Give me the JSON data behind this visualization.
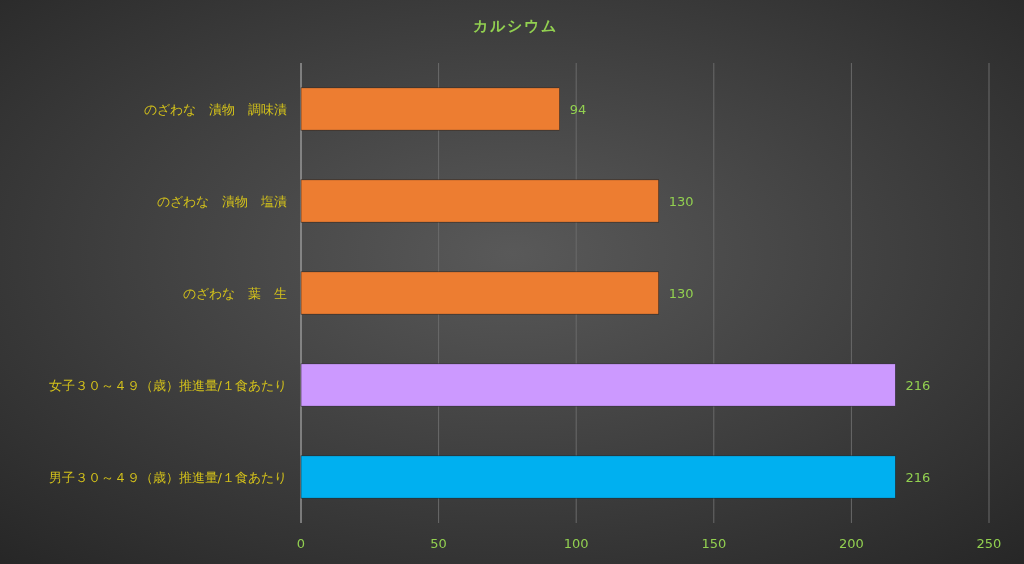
{
  "chart_data": {
    "type": "bar",
    "orientation": "horizontal",
    "title": "カルシウム",
    "categories": [
      "のざわな　漬物　調味漬",
      "のざわな　漬物　塩漬",
      "のざわな　葉　生",
      "女子３０～４９（歳）推進量/１食あたり",
      "男子３０～４９（歳）推進量/１食あたり"
    ],
    "values": [
      94,
      130,
      130,
      216,
      216
    ],
    "colors": [
      "#ed7d31",
      "#ed7d31",
      "#ed7d31",
      "#cc99ff",
      "#00b0f0"
    ],
    "xlim": [
      0,
      250
    ],
    "xticks": [
      0,
      50,
      100,
      150,
      200,
      250
    ],
    "grid": "x",
    "data_labels": true
  }
}
